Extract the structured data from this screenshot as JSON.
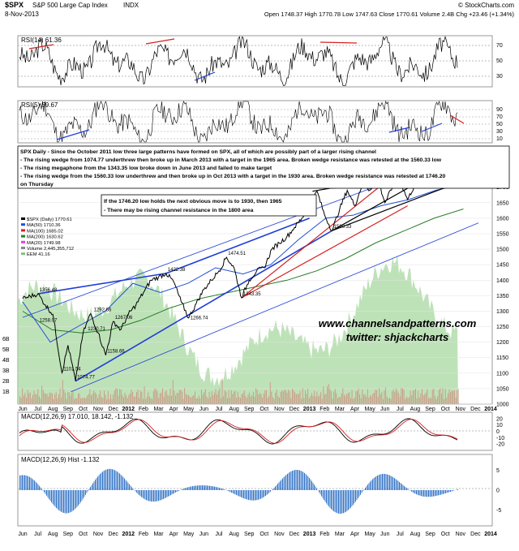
{
  "header": {
    "symbol": "$SPX",
    "name": "S&P 500 Large Cap Index",
    "exchange": "INDX",
    "date": "8-Nov-2013",
    "quote": "Open 1748.37  High 1770.78  Low 1747.63  Close 1770.61  Volume 2.4B  Chg +23.46 (+1.34%)",
    "credit": "© StockCharts.com"
  },
  "rsi14": {
    "label": "RSI(14) 61.36",
    "levels": [
      30,
      50,
      70
    ]
  },
  "rsi5": {
    "label": "RSI(5) 59.67",
    "levels": [
      10,
      30,
      50,
      70,
      90
    ]
  },
  "notes": {
    "main": [
      "SPX Daily - Since the October 2011 low three large patterns have formed on SPX, all of which are possibly part of a larger rising channel",
      "- The rising wedge from 1074.77 underthrew then broke up in March 2013 with a target in the 1965 area. Broken wedge resistance was retested at the 1560.33 low",
      "- The rising megaphone from the 1343.35 low broke down in June 2013 and failed to make target",
      "- The rising wedge from the 1560.33 low underthrew and then broke up in Oct 2013 with a target in the 1930 area. Broken wedge resistance was retested at 1746.20",
      "on Thursday"
    ],
    "secondary": [
      "If the 1746.20 low holds the next obvious move is to 1930, then 1965",
      "- There may be rising channel resistance in the 1800 area"
    ]
  },
  "watermark": [
    "www.channelsandpatterns.com",
    "twitter: shjackcharts"
  ],
  "price_legend": [
    {
      "label": "$SPX (Daily) 1770.61",
      "color": "#000000"
    },
    {
      "label": "MA(50) 1710.36",
      "color": "#1f4fd6"
    },
    {
      "label": "MA(100) 1685.02",
      "color": "#d62020"
    },
    {
      "label": "MA(200) 1630.62",
      "color": "#2a7d2a"
    },
    {
      "label": "MA(20) 1749.98",
      "color": "#e040e0"
    },
    {
      "label": "Volume 2,445,355,712",
      "color": "#888888"
    },
    {
      "label": "EEM 41.16",
      "color": "#7fbf7f"
    }
  ],
  "colors": {
    "price": "#000000",
    "ma50": "#1f4fd6",
    "ma100": "#d62020",
    "ma200": "#2a7d2a",
    "ma20": "#e040e0",
    "eem": "#a8d8a0",
    "trend_blue": "#1f3fd6",
    "trend_red": "#d62020",
    "macd": "#000000",
    "signal": "#d62020",
    "hist": "#3a78c8"
  },
  "chart_data": [
    {
      "type": "line",
      "panel": "price",
      "x_tick_labels": [
        "Jun",
        "Jul",
        "Aug",
        "Sep",
        "Oct",
        "Nov",
        "Dec",
        "2012",
        "Feb",
        "Mar",
        "Apr",
        "May",
        "Jun",
        "Jul",
        "Aug",
        "Sep",
        "Oct",
        "Nov",
        "Dec",
        "2013",
        "Feb",
        "Mar",
        "Apr",
        "May",
        "Jun",
        "Jul",
        "Aug",
        "Sep",
        "Oct",
        "Nov",
        "Dec",
        "2014"
      ],
      "ylim": [
        1000,
        1825
      ],
      "y_ticks": [
        1000,
        1050,
        1100,
        1150,
        1200,
        1250,
        1300,
        1350,
        1400,
        1450,
        1500,
        1550,
        1600,
        1650,
        1700,
        1750,
        1800
      ],
      "volume_ticks": [
        "6B",
        "5B",
        "4B",
        "3B",
        "2B",
        "1B"
      ],
      "series": [
        {
          "name": "$SPX (Daily)",
          "x": [
            0,
            1,
            1.5,
            2,
            2.6,
            3,
            3.5,
            4,
            4.5,
            5,
            5.5,
            6,
            6.5,
            7,
            7.5,
            8,
            8.5,
            9,
            9.5,
            10,
            10.5,
            11,
            11.5,
            12,
            12.5,
            13,
            13.5,
            14,
            14.5,
            15,
            15.5,
            16,
            16.5,
            17,
            17.5,
            18,
            18.5,
            19,
            19.5,
            20,
            20.5,
            21,
            21.5,
            22,
            22.5,
            23,
            23.5,
            24,
            24.5,
            25,
            25.5,
            26,
            26.5,
            27,
            27.5,
            28,
            28.5,
            29,
            29.2
          ],
          "values": [
            1340,
            1356,
            1320,
            1290,
            1101,
            1190,
            1074,
            1230,
            1292,
            1230,
            1158,
            1267,
            1240,
            1290,
            1320,
            1360,
            1400,
            1410,
            1422,
            1395,
            1330,
            1278,
            1325,
            1370,
            1400,
            1430,
            1474,
            1440,
            1343,
            1400,
            1430,
            1440,
            1500,
            1520,
            1540,
            1570,
            1600,
            1640,
            1687,
            1610,
            1560,
            1630,
            1690,
            1640,
            1710,
            1690,
            1730,
            1650,
            1700,
            1720,
            1660,
            1710,
            1760,
            1770,
            1700,
            1740,
            1770,
            1775,
            1770
          ]
        },
        {
          "name": "MA(50)",
          "values": [
            1330,
            1200,
            1250,
            1300,
            1390,
            1360,
            1390,
            1440,
            1420,
            1450,
            1530,
            1600,
            1610,
            1640,
            1660,
            1690,
            1710
          ]
        },
        {
          "name": "MA(200)",
          "values": [
            1300,
            1240,
            1230,
            1240,
            1270,
            1310,
            1340,
            1360,
            1380,
            1400,
            1430,
            1470,
            1520,
            1560,
            1600,
            1630
          ]
        }
      ],
      "annotations": [
        {
          "text": "1356.48",
          "x": 1,
          "y": 1356
        },
        {
          "text": "1258.07",
          "x": 1,
          "y": 1258
        },
        {
          "text": "1230.71",
          "x": 4.2,
          "y": 1230
        },
        {
          "text": "1292.66",
          "x": 4.6,
          "y": 1292
        },
        {
          "text": "1267.06",
          "x": 6,
          "y": 1267
        },
        {
          "text": "1101.54",
          "x": 2.6,
          "y": 1101
        },
        {
          "text": "1074.77",
          "x": 3.5,
          "y": 1074
        },
        {
          "text": "1158.66",
          "x": 5.5,
          "y": 1158
        },
        {
          "text": "1422.38",
          "x": 9.5,
          "y": 1422
        },
        {
          "text": "1266.74",
          "x": 11,
          "y": 1266
        },
        {
          "text": "1474.51",
          "x": 13.5,
          "y": 1474
        },
        {
          "text": "1343.35",
          "x": 14.5,
          "y": 1343
        },
        {
          "text": "1687.18",
          "x": 19.5,
          "y": 1687
        },
        {
          "text": "1560.33",
          "x": 20.5,
          "y": 1560
        },
        {
          "text": "1775.22",
          "x": 28.9,
          "y": 1775
        }
      ]
    },
    {
      "type": "line",
      "panel": "macd",
      "name": "MACD(12,26,9) 17.010, 18.142, -1.132",
      "ylim": [
        -30,
        30
      ],
      "y_ticks": [
        -20,
        -10,
        0,
        10,
        20
      ]
    },
    {
      "type": "bar",
      "panel": "macd-hist",
      "name": "MACD(12,26,9) Hist -1.132",
      "ylim": [
        -9,
        9
      ],
      "y_ticks": [
        -5,
        0,
        5
      ]
    }
  ]
}
